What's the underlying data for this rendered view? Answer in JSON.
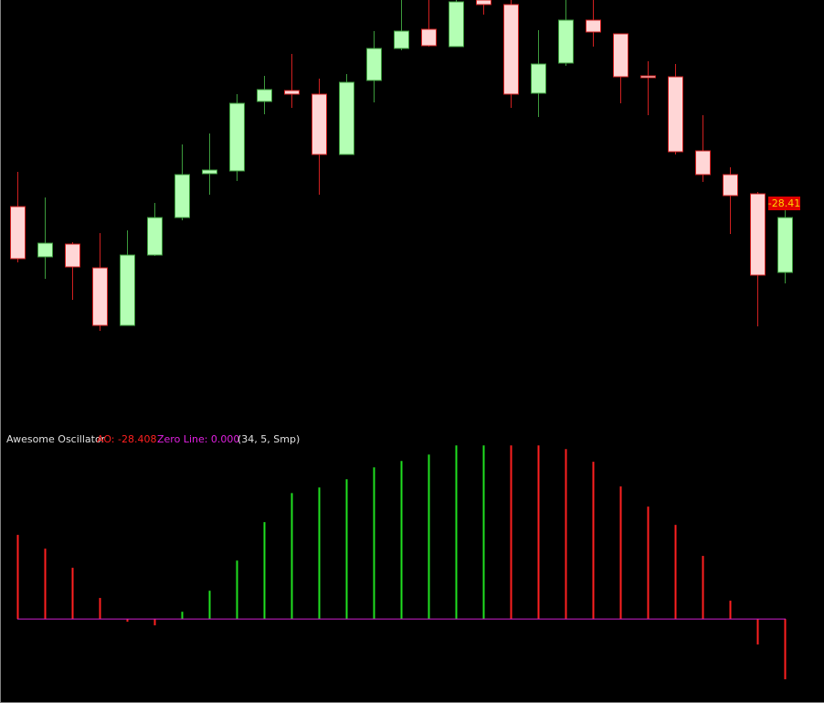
{
  "chart_data": [
    {
      "type": "candlestick",
      "open": [
        254,
        199,
        213,
        187,
        124,
        201,
        242,
        290,
        293,
        369,
        381,
        377,
        311,
        392,
        427,
        448,
        429,
        480,
        475,
        378,
        411,
        458,
        443,
        397,
        396,
        315,
        289,
        268,
        182
      ],
      "high": [
        292,
        264,
        215,
        225,
        228,
        258,
        322,
        334,
        377,
        397,
        421,
        394,
        399,
        446,
        480,
        480,
        480,
        480,
        480,
        447,
        480,
        480,
        443,
        413,
        410,
        354,
        297,
        270,
        252
      ],
      "low": [
        193,
        175,
        152,
        118,
        124,
        200,
        239,
        267,
        282,
        355,
        362,
        267,
        311,
        368,
        425,
        429,
        429,
        464,
        362,
        352,
        408,
        429,
        367,
        354,
        311,
        281,
        224,
        123,
        170
      ],
      "close": [
        197,
        214,
        188,
        124,
        201,
        242,
        289,
        294,
        367,
        382,
        377,
        311,
        390,
        427,
        446,
        430,
        478,
        475,
        377,
        410,
        458,
        445,
        396,
        395,
        314,
        289,
        266,
        179,
        242
      ],
      "ylim": [
        0,
        480
      ],
      "up_color": "#b4ffb4",
      "up_edge": "#3c9a3c",
      "down_color": "#ffd6d6",
      "down_edge": "#d02020"
    },
    {
      "type": "bar",
      "title": "Awesome Oscillator",
      "value_text": "AO: -28.408",
      "zero_text": "Zero Line: 0.000",
      "params_text": "(34, 5, Smp)",
      "last_tag": "-28.41",
      "values": [
        39.6,
        33.1,
        24.1,
        9.9,
        -1.3,
        -3.0,
        3.4,
        13.3,
        27.5,
        45.6,
        59.3,
        61.9,
        65.8,
        71.4,
        74.4,
        77.4,
        81.7,
        81.7,
        81.7,
        81.7,
        80.0,
        74.0,
        62.4,
        52.9,
        44.3,
        29.7,
        8.6,
        -12.0,
        -28.408
      ],
      "colors": [
        "#ff2020",
        "#ff2020",
        "#ff2020",
        "#ff2020",
        "#ff2020",
        "#ff2020",
        "#20e020",
        "#20e020",
        "#20e020",
        "#20e020",
        "#20e020",
        "#20e020",
        "#20e020",
        "#20e020",
        "#20e020",
        "#20e020",
        "#20e020",
        "#20e020",
        "#ff2020",
        "#ff2020",
        "#ff2020",
        "#ff2020",
        "#ff2020",
        "#ff2020",
        "#ff2020",
        "#ff2020",
        "#ff2020",
        "#ff2020",
        "#ff2020"
      ],
      "zero_line": 0,
      "zero_color": "#d020d0",
      "ylim": [
        -40,
        90
      ]
    }
  ]
}
